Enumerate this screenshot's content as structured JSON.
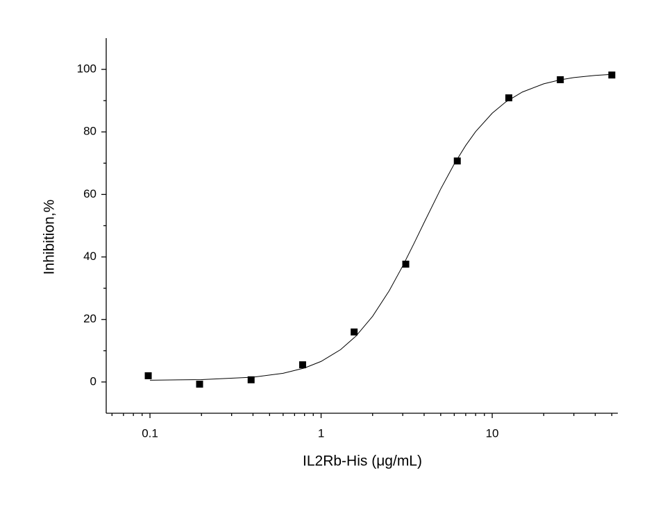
{
  "chart_data": {
    "type": "scatter",
    "x_label": "IL2Rb-His (μg/mL)",
    "y_label": "Inhibition,%",
    "x_scale": "log",
    "xlim": [
      0.0555,
      54.2
    ],
    "ylim": [
      -10,
      110
    ],
    "xticks": [
      0.1,
      1,
      10
    ],
    "xminorticks": [
      0.06,
      0.07,
      0.08,
      0.09,
      0.2,
      0.3,
      0.4,
      0.5,
      0.6,
      0.7,
      0.8,
      0.9,
      2,
      3,
      4,
      5,
      6,
      7,
      8,
      9,
      20,
      30,
      40,
      50
    ],
    "yticks": [
      0,
      20,
      40,
      60,
      80,
      100
    ],
    "yminorticks": [
      10,
      30,
      50,
      70,
      90
    ],
    "series": [
      {
        "type": "scatter",
        "color": "#000000",
        "x": [
          0.0977,
          0.195,
          0.39,
          0.78,
          1.56,
          3.125,
          6.25,
          12.5,
          25,
          50
        ],
        "values": [
          2.0,
          -0.7,
          0.7,
          5.5,
          16.0,
          37.7,
          70.7,
          90.9,
          96.7,
          98.2
        ]
      },
      {
        "type": "line",
        "color": "#000000",
        "x": [
          0.1,
          0.2,
          0.4,
          0.6,
          0.8,
          1,
          1.3,
          1.6,
          2,
          2.5,
          3,
          3.5,
          4,
          5,
          6,
          7,
          8,
          10,
          12,
          15,
          20,
          25,
          30,
          40,
          50
        ],
        "values": [
          0.56,
          0.76,
          1.53,
          2.78,
          4.48,
          6.58,
          10.35,
          14.69,
          21.01,
          29.18,
          37.12,
          44.44,
          51.0,
          61.74,
          69.74,
          75.66,
          80.09,
          85.99,
          89.59,
          92.76,
          95.39,
          96.66,
          97.38,
          98.07,
          98.4
        ]
      }
    ]
  }
}
